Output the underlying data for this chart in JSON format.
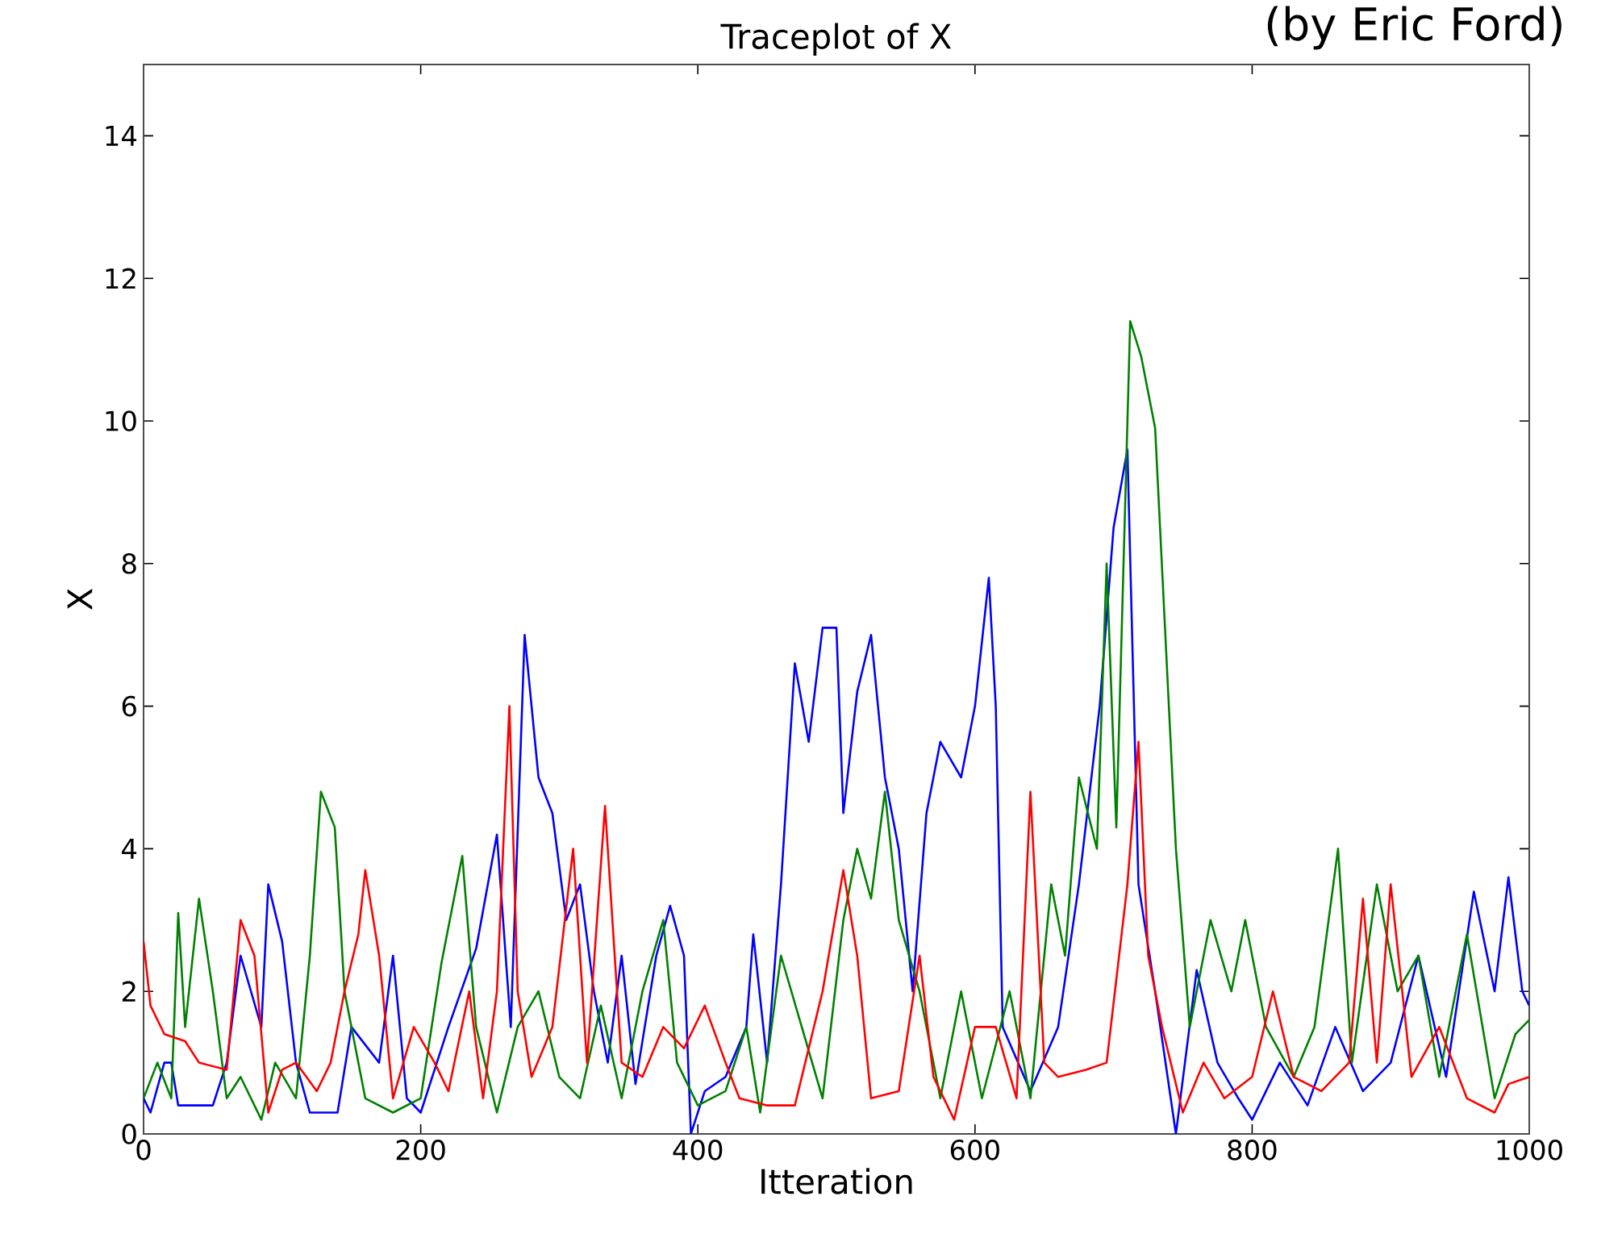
{
  "chart_data": {
    "type": "line",
    "title": "Traceplot of X",
    "xlabel": "Itteration",
    "ylabel": "X",
    "annotations": [
      "(by Eric Ford)"
    ],
    "xlim": [
      0,
      1000
    ],
    "ylim": [
      0,
      15
    ],
    "xticks": [
      0,
      200,
      400,
      600,
      800,
      1000
    ],
    "yticks": [
      0,
      2,
      4,
      6,
      8,
      10,
      12,
      14
    ],
    "grid": false,
    "marker": "none",
    "line_style": "solid",
    "series": [
      {
        "color": "#0000ff",
        "x": [
          0,
          5,
          15,
          20,
          25,
          50,
          60,
          70,
          85,
          90,
          100,
          110,
          120,
          140,
          150,
          170,
          180,
          190,
          200,
          220,
          240,
          255,
          265,
          275,
          285,
          295,
          305,
          315,
          325,
          335,
          345,
          355,
          370,
          380,
          390,
          395,
          405,
          420,
          435,
          440,
          450,
          460,
          470,
          480,
          490,
          500,
          505,
          515,
          525,
          535,
          545,
          555,
          565,
          575,
          590,
          600,
          610,
          615,
          620,
          640,
          660,
          675,
          690,
          700,
          710,
          718,
          730,
          745,
          760,
          775,
          790,
          800,
          820,
          840,
          860,
          880,
          900,
          920,
          940,
          960,
          975,
          985,
          995,
          1000
        ],
        "values": [
          0.5,
          0.3,
          1.0,
          1.0,
          0.4,
          0.4,
          1.0,
          2.5,
          1.5,
          3.5,
          2.7,
          1.0,
          0.3,
          0.3,
          1.5,
          1.0,
          2.5,
          0.5,
          0.3,
          1.5,
          2.6,
          4.2,
          1.5,
          7.0,
          5.0,
          4.5,
          3.0,
          3.5,
          2.0,
          1.0,
          2.5,
          0.7,
          2.5,
          3.2,
          2.5,
          0.0,
          0.6,
          0.8,
          1.5,
          2.8,
          1.0,
          3.5,
          6.6,
          5.5,
          7.1,
          7.1,
          4.5,
          6.2,
          7.0,
          5.0,
          4.0,
          2.0,
          4.5,
          5.5,
          5.0,
          6.0,
          7.8,
          6.0,
          1.5,
          0.6,
          1.5,
          3.5,
          6.0,
          8.5,
          9.6,
          3.5,
          2.0,
          0.0,
          2.3,
          1.0,
          0.5,
          0.2,
          1.0,
          0.4,
          1.5,
          0.6,
          1.0,
          2.5,
          0.8,
          3.4,
          2.0,
          3.6,
          2.0,
          1.8
        ]
      },
      {
        "color": "#008000",
        "x": [
          0,
          10,
          20,
          25,
          30,
          40,
          50,
          60,
          70,
          85,
          95,
          110,
          120,
          128,
          138,
          145,
          160,
          180,
          200,
          215,
          230,
          240,
          255,
          270,
          285,
          300,
          315,
          330,
          345,
          360,
          375,
          385,
          400,
          420,
          435,
          445,
          460,
          475,
          490,
          505,
          515,
          525,
          535,
          545,
          560,
          575,
          590,
          605,
          625,
          640,
          655,
          665,
          675,
          688,
          695,
          702,
          712,
          720,
          730,
          745,
          755,
          770,
          785,
          795,
          810,
          830,
          845,
          862,
          872,
          890,
          905,
          920,
          935,
          955,
          975,
          990,
          1000
        ],
        "values": [
          0.5,
          1.0,
          0.5,
          3.1,
          1.5,
          3.3,
          2.0,
          0.5,
          0.8,
          0.2,
          1.0,
          0.5,
          2.5,
          4.8,
          4.3,
          2.0,
          0.5,
          0.3,
          0.5,
          2.4,
          3.9,
          1.5,
          0.3,
          1.5,
          2.0,
          0.8,
          0.5,
          1.8,
          0.5,
          2.0,
          3.0,
          1.0,
          0.4,
          0.6,
          1.5,
          0.3,
          2.5,
          1.5,
          0.5,
          3.0,
          4.0,
          3.3,
          4.8,
          3.0,
          2.0,
          0.5,
          2.0,
          0.5,
          2.0,
          0.5,
          3.5,
          2.5,
          5.0,
          4.0,
          8.0,
          4.3,
          11.4,
          10.9,
          9.9,
          4.0,
          1.5,
          3.0,
          2.0,
          3.0,
          1.5,
          0.8,
          1.5,
          4.0,
          1.0,
          3.5,
          2.0,
          2.5,
          0.8,
          2.8,
          0.5,
          1.4,
          1.6
        ]
      },
      {
        "color": "#ff0000",
        "x": [
          0,
          5,
          15,
          30,
          40,
          60,
          70,
          80,
          90,
          100,
          110,
          125,
          135,
          145,
          155,
          160,
          170,
          180,
          195,
          210,
          220,
          235,
          245,
          255,
          264,
          270,
          280,
          295,
          310,
          320,
          333,
          345,
          360,
          375,
          390,
          405,
          420,
          430,
          450,
          470,
          490,
          505,
          515,
          525,
          545,
          560,
          570,
          585,
          600,
          615,
          630,
          640,
          650,
          660,
          680,
          695,
          710,
          718,
          725,
          735,
          750,
          765,
          780,
          800,
          815,
          830,
          850,
          870,
          880,
          890,
          900,
          915,
          935,
          955,
          975,
          985,
          1000
        ],
        "values": [
          2.7,
          1.8,
          1.4,
          1.3,
          1.0,
          0.9,
          3.0,
          2.5,
          0.3,
          0.9,
          1.0,
          0.6,
          1.0,
          2.0,
          2.8,
          3.7,
          2.5,
          0.5,
          1.5,
          1.0,
          0.6,
          2.0,
          0.5,
          2.0,
          6.0,
          2.0,
          0.8,
          1.5,
          4.0,
          1.0,
          4.6,
          1.0,
          0.8,
          1.5,
          1.2,
          1.8,
          1.0,
          0.5,
          0.4,
          0.4,
          2.0,
          3.7,
          2.5,
          0.5,
          0.6,
          2.5,
          0.8,
          0.2,
          1.5,
          1.5,
          0.5,
          4.8,
          1.0,
          0.8,
          0.9,
          1.0,
          3.5,
          5.5,
          2.5,
          1.5,
          0.3,
          1.0,
          0.5,
          0.8,
          2.0,
          0.8,
          0.6,
          1.0,
          3.3,
          1.0,
          3.5,
          0.8,
          1.5,
          0.5,
          0.3,
          0.7,
          0.8
        ]
      }
    ]
  }
}
